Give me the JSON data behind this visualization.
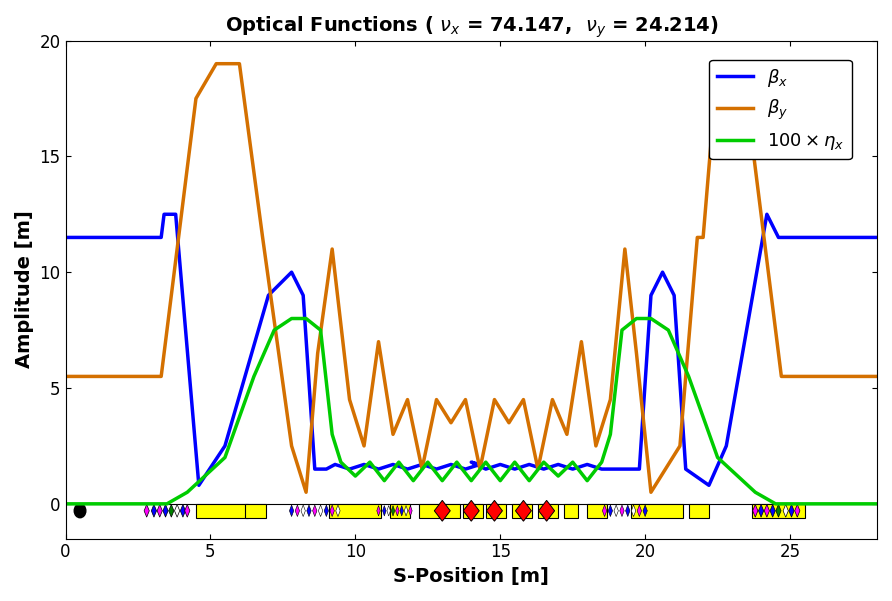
{
  "title": "Optical Functions ( $\\nu_x$ = 74.147,  $\\nu_y$ = 24.214)",
  "xlabel": "S-Position [m]",
  "ylabel": "Amplitude [m]",
  "xlim": [
    0,
    28
  ],
  "ylim": [
    -1.5,
    20
  ],
  "beta_x_color": "#0000FF",
  "beta_y_color": "#D47000",
  "eta_x_color": "#00CC00",
  "legend_labels": [
    "$\\beta_x$",
    "$\\beta_y$",
    "$100\\times\\eta_x$"
  ],
  "element_y": -0.3,
  "element_height": 0.6,
  "background_color": "#FFFFFF"
}
